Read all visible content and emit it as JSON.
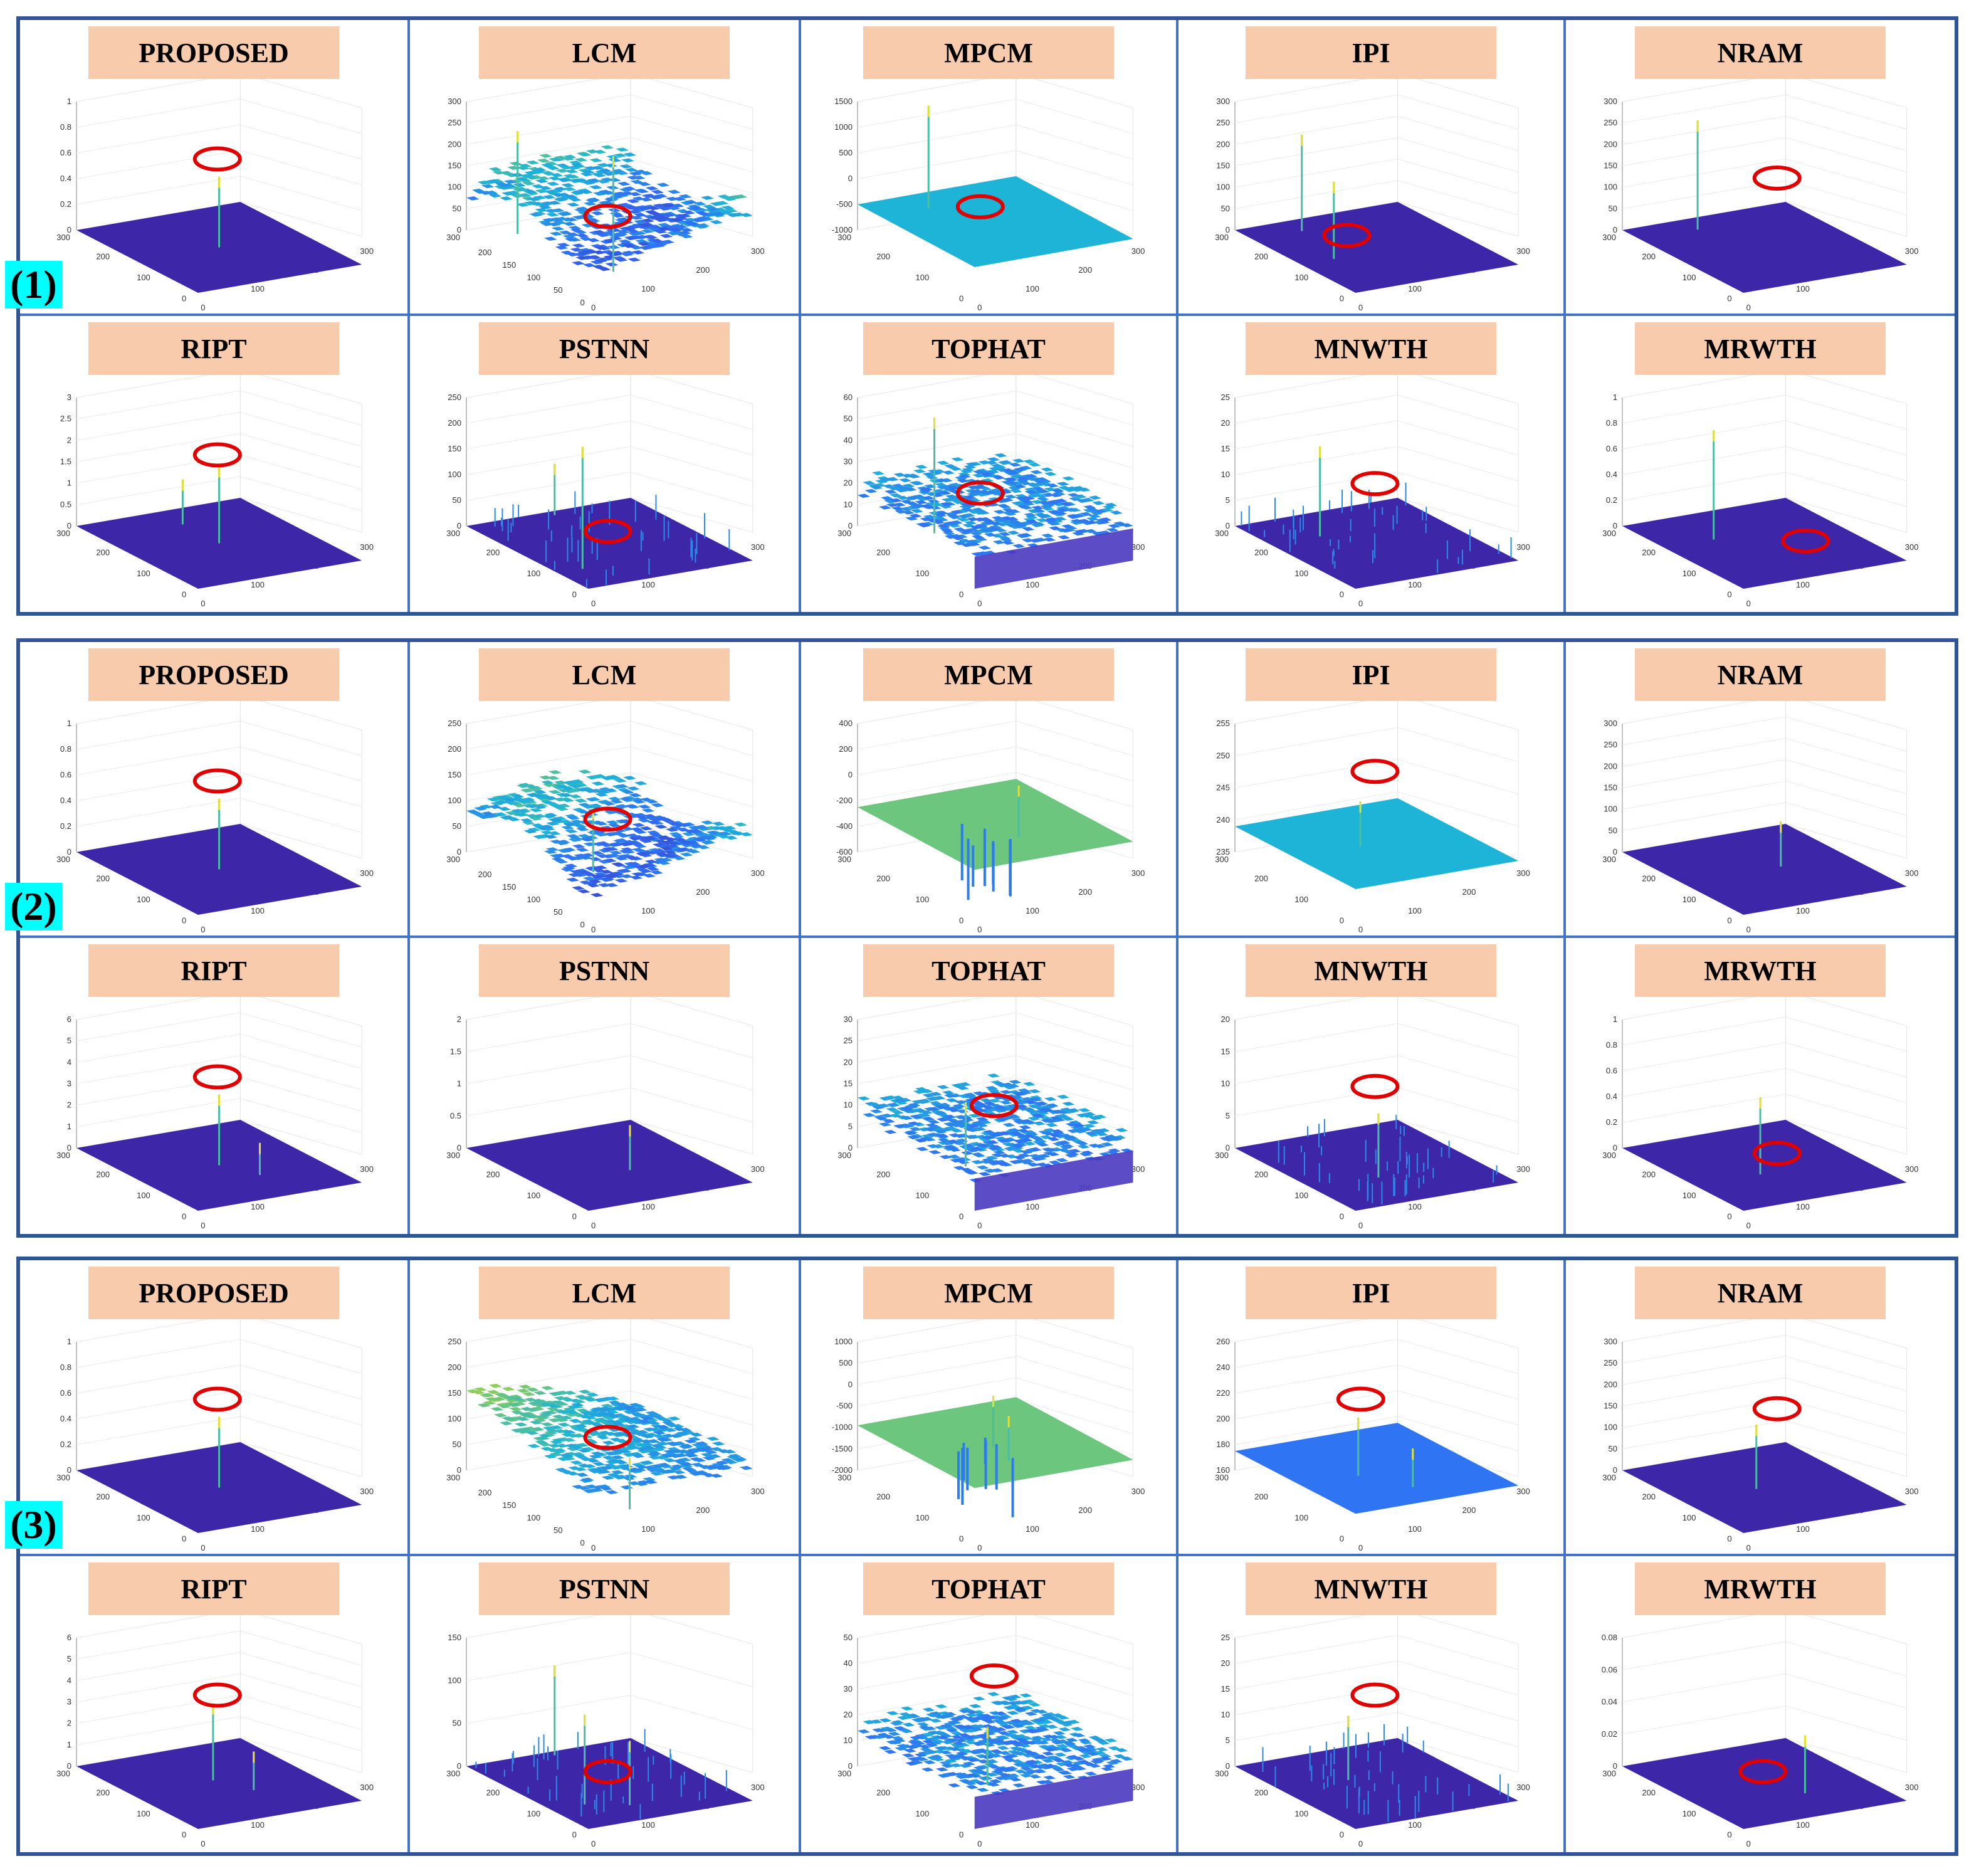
{
  "chart_data": [
    {
      "type": "surface-3d-grid",
      "group_label": "(1)",
      "panels": [
        {
          "title": "PROPOSED",
          "zticks": [
            "1",
            "0.8",
            "0.6",
            "0.4",
            "0.2",
            "0"
          ],
          "surface": "flat",
          "peaks": [
            [
              0.5,
              0.5,
              0.55
            ]
          ],
          "circle": [
            0.45,
            0.3
          ]
        },
        {
          "title": "LCM",
          "zticks": [
            "300",
            "250",
            "200",
            "150",
            "100",
            "50",
            "0"
          ],
          "xticks": [
            "200",
            "150",
            "100",
            "50",
            "0"
          ],
          "surface": "rough",
          "peaks": [
            [
              0.15,
              0.2,
              0.8
            ],
            [
              0.8,
              0.3,
              0.9
            ]
          ],
          "circle": [
            0.45,
            0.6
          ]
        },
        {
          "title": "MPCM",
          "zticks": [
            "1500",
            "1000",
            "500",
            "0",
            "-500",
            "-1000"
          ],
          "surface": "mid",
          "peaks": [
            [
              0.2,
              0.3,
              0.8
            ]
          ],
          "circle": [
            0.4,
            0.55
          ]
        },
        {
          "title": "IPI",
          "zticks": [
            "300",
            "250",
            "200",
            "150",
            "100",
            "50",
            "0"
          ],
          "surface": "flat",
          "peaks": [
            [
              0.15,
              0.3,
              0.75
            ],
            [
              0.55,
              0.2,
              0.6
            ]
          ],
          "circle": [
            0.35,
            0.7
          ]
        },
        {
          "title": "NRAM",
          "zticks": [
            "300",
            "250",
            "200",
            "150",
            "100",
            "50",
            "0"
          ],
          "surface": "flat",
          "peaks": [
            [
              0.15,
              0.35,
              0.85
            ]
          ],
          "circle": [
            0.5,
            0.4
          ]
        }
      ]
    },
    {
      "type": "surface-3d-grid",
      "group_label": "",
      "panels": [
        {
          "title": "RIPT",
          "zticks": [
            "3",
            "2.5",
            "2",
            "1.5",
            "1",
            "0.5",
            "0"
          ],
          "surface": "flat",
          "peaks": [
            [
              0.5,
              0.5,
              0.6
            ],
            [
              0.2,
              0.5,
              0.35
            ]
          ],
          "circle": [
            0.45,
            0.3
          ]
        },
        {
          "title": "PSTNN",
          "zticks": [
            "250",
            "200",
            "150",
            "100",
            "50",
            "0"
          ],
          "surface": "flat-spiky",
          "peaks": [
            [
              0.75,
              0.15,
              0.95
            ],
            [
              0.05,
              0.5,
              0.4
            ]
          ],
          "circle": [
            0.45,
            0.7
          ]
        },
        {
          "title": "TOPHAT",
          "zticks": [
            "60",
            "50",
            "40",
            "30",
            "20",
            "10",
            "0"
          ],
          "surface": "noisy",
          "peaks": [
            [
              0.25,
              0.3,
              0.9
            ]
          ],
          "circle": [
            0.4,
            0.5
          ]
        },
        {
          "title": "MNWTH",
          "zticks": [
            "25",
            "20",
            "15",
            "10",
            "5",
            "0"
          ],
          "surface": "flat-spiky",
          "peaks": [
            [
              0.3,
              0.3,
              0.7
            ]
          ],
          "circle": [
            0.45,
            0.45
          ]
        },
        {
          "title": "MRWTH",
          "zticks": [
            "1",
            "0.8",
            "0.6",
            "0.4",
            "0.2",
            "0"
          ],
          "surface": "flat",
          "peaks": [
            [
              0.35,
              0.3,
              0.85
            ]
          ],
          "circle": [
            0.6,
            0.75
          ]
        }
      ]
    },
    {
      "type": "surface-3d-grid",
      "group_label": "(2)",
      "panels": [
        {
          "title": "PROPOSED",
          "zticks": [
            "1",
            "0.8",
            "0.6",
            "0.4",
            "0.2",
            "0"
          ],
          "surface": "flat",
          "peaks": [
            [
              0.5,
              0.5,
              0.55
            ]
          ],
          "circle": [
            0.45,
            0.3
          ]
        },
        {
          "title": "LCM",
          "zticks": [
            "250",
            "200",
            "150",
            "100",
            "50",
            "0"
          ],
          "xticks": [
            "200",
            "150",
            "100",
            "50",
            "0"
          ],
          "surface": "rough",
          "peaks": [
            [
              0.5,
              0.4,
              0.5
            ]
          ],
          "circle": [
            0.45,
            0.5
          ]
        },
        {
          "title": "MPCM",
          "zticks": [
            "400",
            "200",
            "0",
            "-200",
            "-400",
            "-600"
          ],
          "surface": "green-dips",
          "peaks": [
            [
              0.7,
              0.5,
              0.4
            ]
          ],
          "circle": null
        },
        {
          "title": "IPI",
          "zticks": [
            "255",
            "250",
            "245",
            "240",
            "235"
          ],
          "surface": "mid",
          "peaks": [
            [
              0.5,
              0.4,
              0.35
            ]
          ],
          "circle": [
            0.45,
            0.25
          ]
        },
        {
          "title": "NRAM",
          "zticks": [
            "300",
            "250",
            "200",
            "150",
            "100",
            "50",
            "0"
          ],
          "surface": "flat",
          "peaks": [
            [
              0.5,
              0.6,
              0.35
            ]
          ],
          "circle": null
        }
      ]
    },
    {
      "type": "surface-3d-grid",
      "group_label": "",
      "panels": [
        {
          "title": "RIPT",
          "zticks": [
            "6",
            "5",
            "4",
            "3",
            "2",
            "1",
            "0"
          ],
          "surface": "flat",
          "peaks": [
            [
              0.5,
              0.5,
              0.55
            ],
            [
              0.7,
              0.6,
              0.25
            ]
          ],
          "circle": [
            0.45,
            0.3
          ]
        },
        {
          "title": "PSTNN",
          "zticks": [
            "2",
            "1.5",
            "1",
            "0.5",
            "0"
          ],
          "surface": "flat",
          "peaks": [
            [
              0.6,
              0.55,
              0.35
            ]
          ],
          "circle": null
        },
        {
          "title": "TOPHAT",
          "zticks": [
            "30",
            "25",
            "20",
            "15",
            "10",
            "5",
            "0"
          ],
          "surface": "noisy",
          "peaks": [
            [
              0.45,
              0.35,
              0.5
            ]
          ],
          "circle": [
            0.45,
            0.45
          ]
        },
        {
          "title": "MNWTH",
          "zticks": [
            "20",
            "15",
            "10",
            "5",
            "0"
          ],
          "surface": "flat-spiky",
          "peaks": [
            [
              0.65,
              0.4,
              0.5
            ]
          ],
          "circle": [
            0.45,
            0.35
          ]
        },
        {
          "title": "MRWTH",
          "zticks": [
            "1",
            "0.8",
            "0.6",
            "0.4",
            "0.2",
            "0"
          ],
          "surface": "flat",
          "peaks": [
            [
              0.6,
              0.4,
              0.6
            ]
          ],
          "circle": [
            0.5,
            0.7
          ]
        }
      ]
    },
    {
      "type": "surface-3d-grid",
      "group_label": "(3)",
      "panels": [
        {
          "title": "PROPOSED",
          "zticks": [
            "1",
            "0.8",
            "0.6",
            "0.4",
            "0.2",
            "0"
          ],
          "surface": "flat",
          "peaks": [
            [
              0.5,
              0.5,
              0.55
            ]
          ],
          "circle": [
            0.45,
            0.3
          ]
        },
        {
          "title": "LCM",
          "zticks": [
            "250",
            "200",
            "150",
            "100",
            "50",
            "0"
          ],
          "xticks": [
            "200",
            "150",
            "100",
            "50",
            "0"
          ],
          "surface": "rough-slope",
          "peaks": [
            [
              0.8,
              0.4,
              0.4
            ]
          ],
          "circle": [
            0.45,
            0.5
          ]
        },
        {
          "title": "MPCM",
          "zticks": [
            "1000",
            "500",
            "0",
            "-500",
            "-1000",
            "-1500",
            "-2000"
          ],
          "surface": "green-dips",
          "peaks": [
            [
              0.55,
              0.45,
              0.4
            ],
            [
              0.75,
              0.4,
              0.35
            ]
          ],
          "circle": null
        },
        {
          "title": "IPI",
          "zticks": [
            "260",
            "240",
            "220",
            "200",
            "180",
            "160"
          ],
          "surface": "blue-mid",
          "peaks": [
            [
              0.55,
              0.35,
              0.45
            ],
            [
              0.8,
              0.5,
              0.3
            ]
          ],
          "circle": [
            0.4,
            0.3
          ]
        },
        {
          "title": "NRAM",
          "zticks": [
            "300",
            "250",
            "200",
            "150",
            "100",
            "50",
            "0"
          ],
          "surface": "flat",
          "peaks": [
            [
              0.5,
              0.45,
              0.5
            ]
          ],
          "circle": [
            0.5,
            0.35
          ]
        }
      ]
    },
    {
      "type": "surface-3d-grid",
      "group_label": "",
      "panels": [
        {
          "title": "RIPT",
          "zticks": [
            "6",
            "5",
            "4",
            "3",
            "2",
            "1",
            "0"
          ],
          "surface": "flat",
          "peaks": [
            [
              0.45,
              0.5,
              0.6
            ],
            [
              0.65,
              0.6,
              0.3
            ]
          ],
          "circle": [
            0.45,
            0.3
          ]
        },
        {
          "title": "PSTNN",
          "zticks": [
            "150",
            "100",
            "50",
            "0"
          ],
          "surface": "flat-spiky",
          "peaks": [
            [
              0.05,
              0.5,
              0.7
            ],
            [
              0.7,
              0.2,
              0.7
            ],
            [
              0.8,
              0.4,
              0.5
            ]
          ],
          "circle": [
            0.45,
            0.7
          ]
        },
        {
          "title": "TOPHAT",
          "zticks": [
            "50",
            "40",
            "30",
            "20",
            "10",
            "0"
          ],
          "surface": "noisy",
          "peaks": [
            [
              0.5,
              0.45,
              0.45
            ]
          ],
          "circle": [
            0.45,
            0.2
          ]
        },
        {
          "title": "MNWTH",
          "zticks": [
            "25",
            "20",
            "15",
            "10",
            "5",
            "0"
          ],
          "surface": "flat-spiky",
          "peaks": [
            [
              0.4,
              0.4,
              0.5
            ]
          ],
          "circle": [
            0.45,
            0.3
          ]
        },
        {
          "title": "MRWTH",
          "zticks": [
            "0.08",
            "0.06",
            "0.04",
            "0.02",
            "0"
          ],
          "surface": "flat",
          "peaks": [
            [
              0.7,
              0.6,
              0.45
            ]
          ],
          "circle": [
            0.45,
            0.7
          ]
        }
      ]
    }
  ],
  "axis_defaults": {
    "back_tick": "300",
    "y_ticks": [
      "200",
      "100",
      "0"
    ],
    "x_ticks": [
      "0",
      "100",
      "200",
      "300"
    ]
  },
  "colors": {
    "border_outer": "#2f5597",
    "border_inner": "#4472c4",
    "tag_bg": "#f8cbad",
    "group_label_bg": "#00ffff",
    "circle": "#e00000",
    "flat_surface": "#3b22a0"
  }
}
